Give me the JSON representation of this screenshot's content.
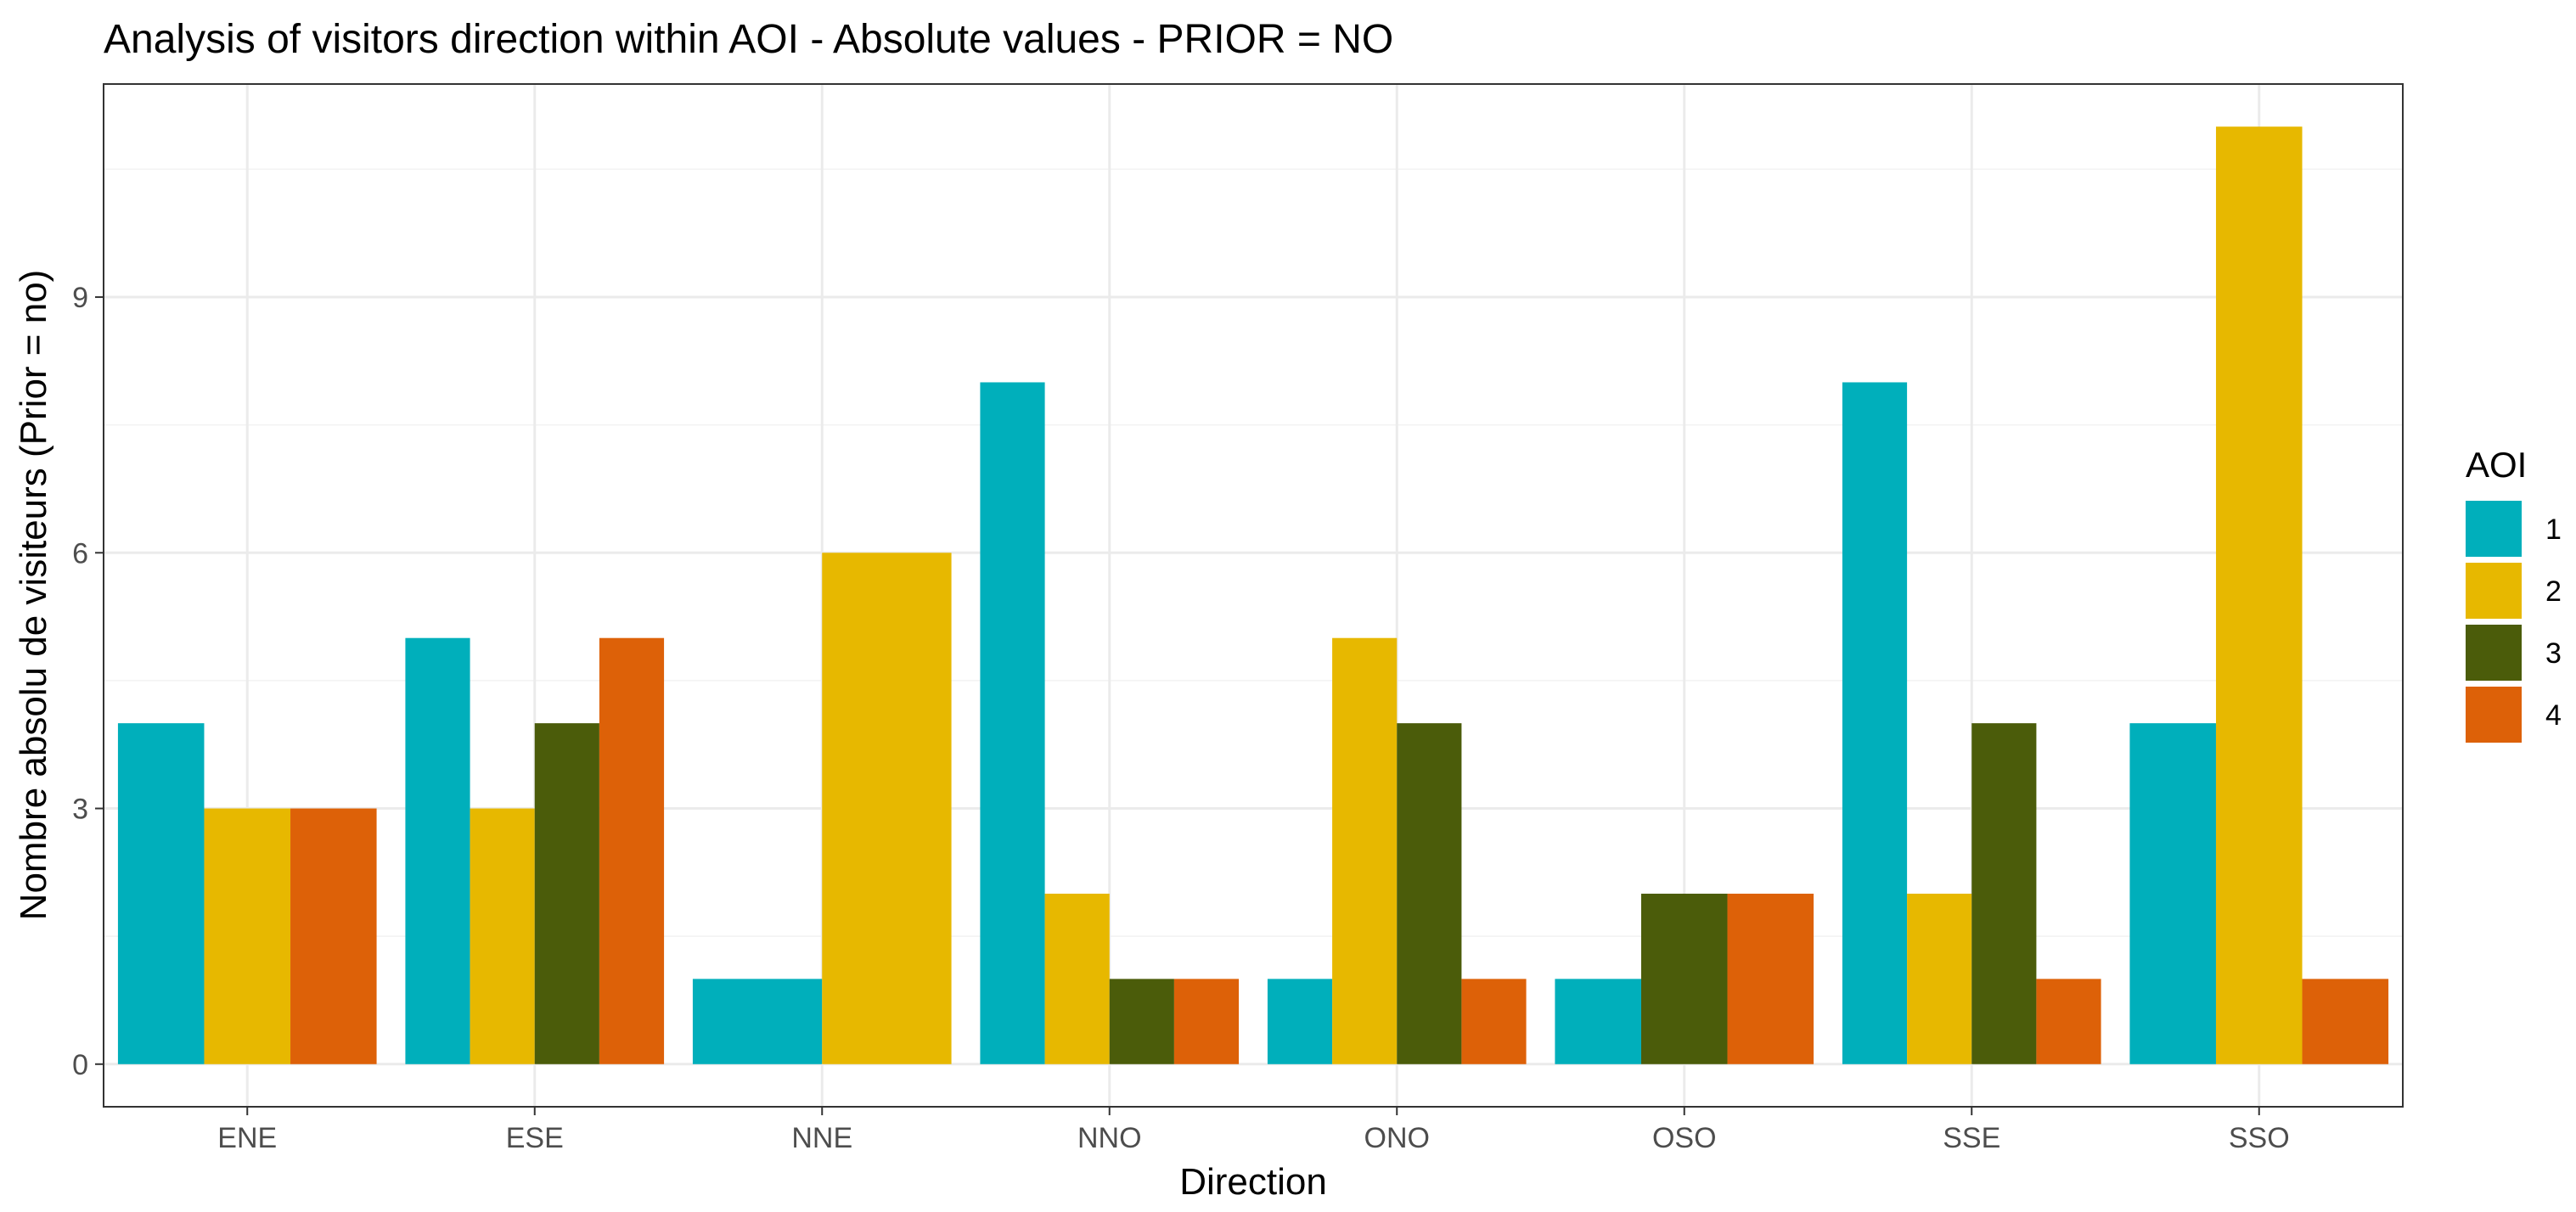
{
  "chart_data": {
    "type": "bar",
    "title": "Analysis of visitors direction within AOI - Absolute values - PRIOR = NO",
    "xlabel": "Direction",
    "ylabel": "Nombre absolu de visiteurs (Prior = no)",
    "categories": [
      "ENE",
      "ESE",
      "NNE",
      "NNO",
      "ONO",
      "OSO",
      "SSE",
      "SSO"
    ],
    "ylim": [
      -0.5,
      11.5
    ],
    "yticks": [
      0,
      3,
      6,
      9
    ],
    "ytick_labels": [
      "0",
      "3",
      "6",
      "9"
    ],
    "grid": true,
    "legend_title": "AOI",
    "legend_position": "right",
    "series": [
      {
        "name": "1",
        "color": "#00AFBB",
        "values": [
          4,
          5,
          1,
          8,
          1,
          1,
          8,
          4
        ]
      },
      {
        "name": "2",
        "color": "#E7B800",
        "values": [
          3,
          3,
          6,
          2,
          5,
          null,
          2,
          11
        ]
      },
      {
        "name": "3",
        "color": "#4B5C0A",
        "values": [
          null,
          4,
          null,
          1,
          4,
          2,
          4,
          null
        ]
      },
      {
        "name": "4",
        "color": "#DD6108",
        "values": [
          3,
          5,
          null,
          1,
          1,
          2,
          1,
          1
        ]
      }
    ]
  }
}
